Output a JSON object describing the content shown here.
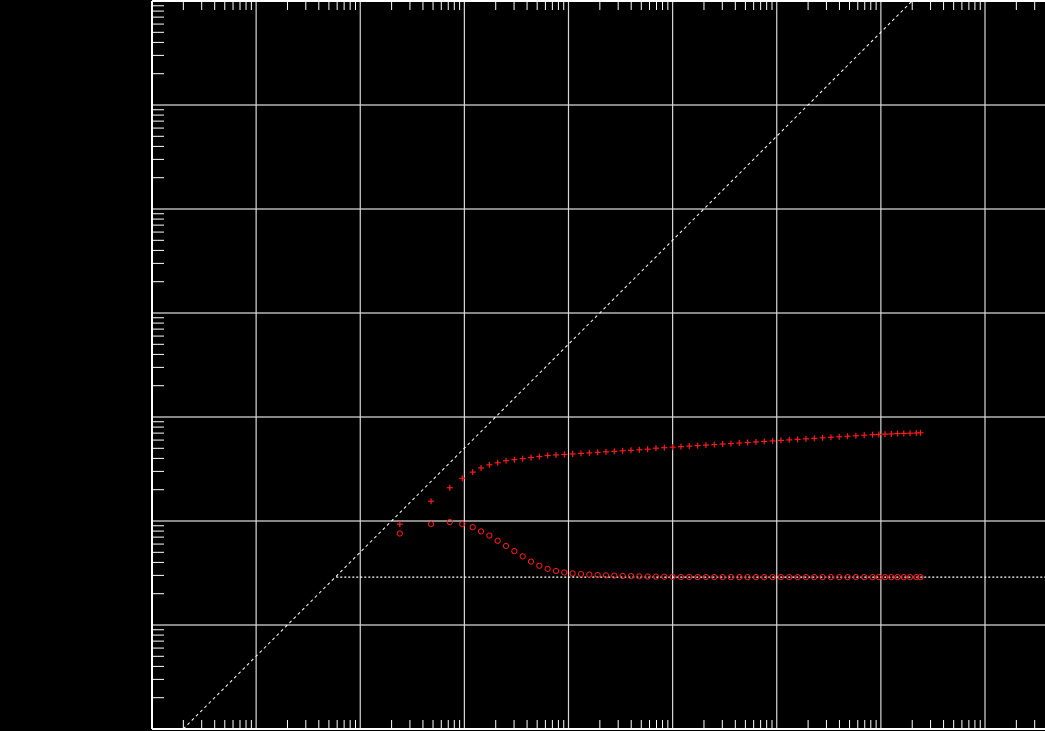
{
  "colors": {
    "background": "#000000",
    "frame": "#ffffff",
    "grid": "#d8d8d8",
    "reference_lines": "#ffffff",
    "series": "#ff1a1a"
  },
  "chart_data": {
    "type": "scatter",
    "title": "",
    "xlabel": "",
    "ylabel": "",
    "x_scale": "log",
    "y_scale": "log",
    "grid": true,
    "legend": "none",
    "tick_labels": "none",
    "xlim_decades": [
      0,
      8
    ],
    "ylim_decades": [
      0,
      7
    ],
    "reference_lines": [
      {
        "kind": "diagonal",
        "style": "dashed",
        "from_decades": [
          0.3,
          0
        ],
        "to_decades": [
          7.3,
          7
        ]
      },
      {
        "kind": "horizontal",
        "style": "dotted",
        "y_decade": 1.46,
        "from_x_decade": 1.77
      }
    ],
    "series": [
      {
        "marker": "plus",
        "points_decades": [
          [
            2.38,
            1.97
          ],
          [
            2.68,
            2.19
          ],
          [
            2.86,
            2.32
          ],
          [
            2.98,
            2.41
          ],
          [
            3.08,
            2.47
          ],
          [
            3.16,
            2.51
          ],
          [
            3.24,
            2.54
          ],
          [
            3.32,
            2.56
          ],
          [
            3.4,
            2.58
          ],
          [
            3.48,
            2.59
          ],
          [
            3.56,
            2.6
          ],
          [
            3.64,
            2.61
          ],
          [
            3.72,
            2.62
          ],
          [
            3.8,
            2.63
          ],
          [
            3.88,
            2.635
          ],
          [
            3.96,
            2.64
          ],
          [
            4.04,
            2.645
          ],
          [
            4.12,
            2.65
          ],
          [
            4.2,
            2.655
          ],
          [
            4.28,
            2.66
          ],
          [
            4.36,
            2.665
          ],
          [
            4.44,
            2.67
          ],
          [
            4.52,
            2.675
          ],
          [
            4.6,
            2.68
          ],
          [
            4.68,
            2.685
          ],
          [
            4.76,
            2.69
          ],
          [
            4.84,
            2.7
          ],
          [
            4.92,
            2.705
          ],
          [
            5.0,
            2.71
          ],
          [
            5.08,
            2.715
          ],
          [
            5.16,
            2.72
          ],
          [
            5.24,
            2.725
          ],
          [
            5.32,
            2.73
          ],
          [
            5.4,
            2.735
          ],
          [
            5.48,
            2.74
          ],
          [
            5.56,
            2.745
          ],
          [
            5.64,
            2.75
          ],
          [
            5.72,
            2.755
          ],
          [
            5.8,
            2.76
          ],
          [
            5.88,
            2.765
          ],
          [
            5.96,
            2.77
          ],
          [
            6.04,
            2.775
          ],
          [
            6.12,
            2.78
          ],
          [
            6.2,
            2.785
          ],
          [
            6.28,
            2.79
          ],
          [
            6.36,
            2.795
          ],
          [
            6.44,
            2.8
          ],
          [
            6.52,
            2.805
          ],
          [
            6.6,
            2.81
          ],
          [
            6.68,
            2.815
          ],
          [
            6.76,
            2.82
          ],
          [
            6.84,
            2.825
          ],
          [
            6.92,
            2.83
          ],
          [
            6.98,
            2.832
          ],
          [
            7.04,
            2.835
          ],
          [
            7.1,
            2.837
          ],
          [
            7.16,
            2.84
          ],
          [
            7.22,
            2.842
          ],
          [
            7.28,
            2.844
          ],
          [
            7.34,
            2.846
          ],
          [
            7.38,
            2.848
          ]
        ]
      },
      {
        "marker": "circle",
        "points_decades": [
          [
            2.38,
            1.88
          ],
          [
            2.68,
            1.97
          ],
          [
            2.86,
            1.99
          ],
          [
            2.98,
            1.97
          ],
          [
            3.08,
            1.94
          ],
          [
            3.16,
            1.9
          ],
          [
            3.24,
            1.86
          ],
          [
            3.32,
            1.81
          ],
          [
            3.4,
            1.76
          ],
          [
            3.48,
            1.71
          ],
          [
            3.56,
            1.66
          ],
          [
            3.64,
            1.61
          ],
          [
            3.72,
            1.57
          ],
          [
            3.8,
            1.54
          ],
          [
            3.88,
            1.52
          ],
          [
            3.96,
            1.505
          ],
          [
            4.04,
            1.495
          ],
          [
            4.12,
            1.49
          ],
          [
            4.2,
            1.485
          ],
          [
            4.28,
            1.48
          ],
          [
            4.36,
            1.478
          ],
          [
            4.44,
            1.475
          ],
          [
            4.52,
            1.472
          ],
          [
            4.6,
            1.47
          ],
          [
            4.68,
            1.468
          ],
          [
            4.76,
            1.466
          ],
          [
            4.84,
            1.465
          ],
          [
            4.92,
            1.464
          ],
          [
            5.0,
            1.463
          ],
          [
            5.08,
            1.462
          ],
          [
            5.16,
            1.462
          ],
          [
            5.24,
            1.461
          ],
          [
            5.32,
            1.461
          ],
          [
            5.4,
            1.461
          ],
          [
            5.48,
            1.46
          ],
          [
            5.56,
            1.46
          ],
          [
            5.64,
            1.46
          ],
          [
            5.72,
            1.46
          ],
          [
            5.8,
            1.46
          ],
          [
            5.88,
            1.46
          ],
          [
            5.96,
            1.46
          ],
          [
            6.04,
            1.46
          ],
          [
            6.12,
            1.46
          ],
          [
            6.2,
            1.46
          ],
          [
            6.28,
            1.46
          ],
          [
            6.36,
            1.46
          ],
          [
            6.44,
            1.46
          ],
          [
            6.52,
            1.46
          ],
          [
            6.6,
            1.46
          ],
          [
            6.68,
            1.46
          ],
          [
            6.76,
            1.46
          ],
          [
            6.84,
            1.46
          ],
          [
            6.92,
            1.46
          ],
          [
            6.98,
            1.46
          ],
          [
            7.04,
            1.46
          ],
          [
            7.1,
            1.46
          ],
          [
            7.16,
            1.46
          ],
          [
            7.22,
            1.46
          ],
          [
            7.28,
            1.46
          ],
          [
            7.34,
            1.46
          ],
          [
            7.38,
            1.46
          ]
        ]
      }
    ]
  }
}
